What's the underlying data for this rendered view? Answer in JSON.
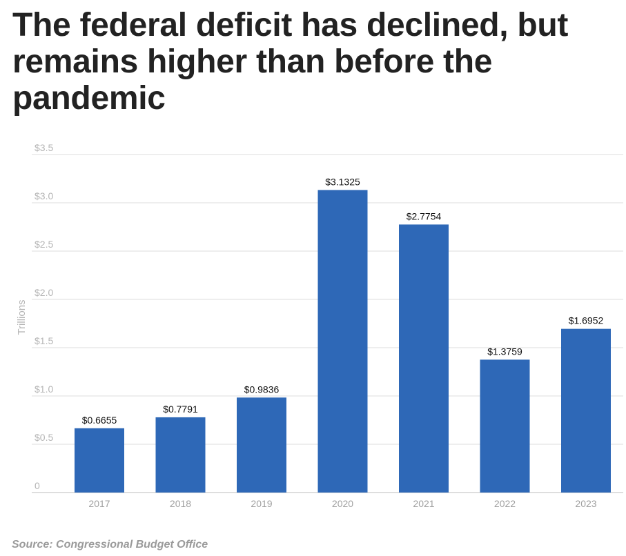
{
  "chart_data": {
    "type": "bar",
    "title": "The federal deficit has declined, but remains higher than before the pandemic",
    "categories": [
      "2017",
      "2018",
      "2019",
      "2020",
      "2021",
      "2022",
      "2023"
    ],
    "values": [
      0.6655,
      0.7791,
      0.9836,
      3.1325,
      2.7754,
      1.3759,
      1.6952
    ],
    "data_labels": [
      "$0.6655",
      "$0.7791",
      "$0.9836",
      "$3.1325",
      "$2.7754",
      "$1.3759",
      "$1.6952"
    ],
    "ylabel": "Trillions",
    "xlabel": "",
    "ylim": [
      0,
      3.5
    ],
    "yticks": [
      0,
      0.5,
      1.0,
      1.5,
      2.0,
      2.5,
      3.0,
      3.5
    ],
    "ytick_labels": [
      "0",
      "$0.5",
      "$1.0",
      "$1.5",
      "$2.0",
      "$2.5",
      "$3.0",
      "$3.5"
    ],
    "grid": true,
    "bar_color": "#2e68b7",
    "source": "Source: Congressional Budget Office"
  }
}
